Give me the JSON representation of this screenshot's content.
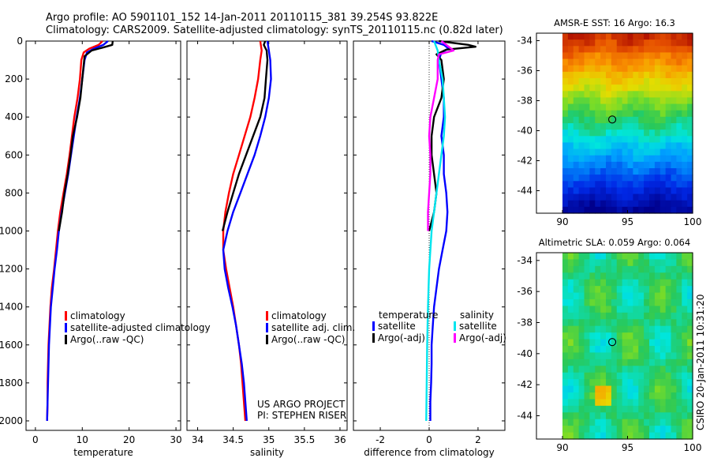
{
  "header": {
    "line1": "Argo profile: AO 5901101_152 14-Jan-2011 20110115_381 39.254S 93.822E",
    "line2": "Climatology: CARS2009. Satellite-adjusted climatology: synTS_20110115.nc (0.82d later)"
  },
  "credits": {
    "project": "US ARGO PROJECT",
    "pi": "PI: STEPHEN RISER",
    "stamp": "CSIRO 20-Jan-2011 10:31:20"
  },
  "colors": {
    "climatology": "#ff0000",
    "satellite": "#0000ff",
    "argo": "#000000",
    "sal_satellite": "#00e5ee",
    "sal_argo": "#ff00ff"
  },
  "chart_data": [
    {
      "type": "line",
      "id": "temperature",
      "xlabel": "temperature",
      "xlim": [
        -2,
        31
      ],
      "ylim": [
        2050,
        0
      ],
      "xticks": [
        "0",
        "10",
        "20",
        "30"
      ],
      "yticks": [
        "0",
        "200",
        "400",
        "600",
        "800",
        "1000",
        "1200",
        "1400",
        "1600",
        "1800",
        "2000"
      ],
      "legend": [
        "climatology",
        "satellite-adjusted climatology",
        "Argo(..raw -QC)"
      ],
      "series": [
        {
          "name": "climatology",
          "color": "#ff0000",
          "points": [
            [
              14.3,
              0
            ],
            [
              13.5,
              20
            ],
            [
              11.5,
              40
            ],
            [
              10.3,
              60
            ],
            [
              9.8,
              100
            ],
            [
              9.5,
              200
            ],
            [
              9.0,
              300
            ],
            [
              8.3,
              400
            ],
            [
              7.8,
              500
            ],
            [
              7.3,
              600
            ],
            [
              6.7,
              700
            ],
            [
              6.0,
              800
            ],
            [
              5.3,
              900
            ],
            [
              4.8,
              1000
            ],
            [
              4.4,
              1100
            ],
            [
              4.0,
              1200
            ],
            [
              3.5,
              1300
            ],
            [
              3.2,
              1400
            ],
            [
              3.0,
              1500
            ],
            [
              2.8,
              1600
            ],
            [
              2.7,
              1700
            ],
            [
              2.6,
              1800
            ],
            [
              2.6,
              1900
            ],
            [
              2.5,
              2000
            ]
          ]
        },
        {
          "name": "satellite-adjusted climatology",
          "color": "#0000ff",
          "points": [
            [
              15.5,
              0
            ],
            [
              14.5,
              20
            ],
            [
              12.5,
              40
            ],
            [
              11.0,
              60
            ],
            [
              10.5,
              100
            ],
            [
              10.0,
              200
            ],
            [
              9.5,
              300
            ],
            [
              8.8,
              400
            ],
            [
              8.2,
              500
            ],
            [
              7.6,
              600
            ],
            [
              7.0,
              700
            ],
            [
              6.3,
              800
            ],
            [
              5.6,
              900
            ],
            [
              5.0,
              1000
            ],
            [
              4.6,
              1100
            ],
            [
              4.1,
              1200
            ],
            [
              3.7,
              1300
            ],
            [
              3.3,
              1400
            ],
            [
              3.1,
              1500
            ],
            [
              2.9,
              1600
            ],
            [
              2.8,
              1700
            ],
            [
              2.7,
              1800
            ],
            [
              2.6,
              1900
            ],
            [
              2.5,
              2000
            ]
          ]
        },
        {
          "name": "Argo(..raw -QC)",
          "color": "#000000",
          "points": [
            [
              16.5,
              0
            ],
            [
              16.4,
              20
            ],
            [
              15.0,
              30
            ],
            [
              12.0,
              50
            ],
            [
              10.5,
              80
            ],
            [
              10.0,
              200
            ],
            [
              9.6,
              300
            ],
            [
              8.9,
              400
            ],
            [
              8.0,
              500
            ],
            [
              7.5,
              600
            ],
            [
              6.9,
              700
            ],
            [
              6.2,
              800
            ],
            [
              5.7,
              900
            ],
            [
              5.0,
              1000
            ]
          ]
        }
      ]
    },
    {
      "type": "line",
      "id": "salinity",
      "xlabel": "salinity",
      "xlim": [
        33.85,
        36.1
      ],
      "ylim": [
        2050,
        0
      ],
      "xticks": [
        "34",
        "34.5",
        "35",
        "35.5",
        "36"
      ],
      "legend": [
        "climatology",
        "satellite adj. clim.",
        "Argo(..raw -QC)"
      ],
      "series": [
        {
          "name": "climatology",
          "color": "#ff0000",
          "points": [
            [
              34.88,
              0
            ],
            [
              34.9,
              50
            ],
            [
              34.88,
              100
            ],
            [
              34.85,
              200
            ],
            [
              34.8,
              300
            ],
            [
              34.74,
              400
            ],
            [
              34.66,
              500
            ],
            [
              34.58,
              600
            ],
            [
              34.5,
              700
            ],
            [
              34.44,
              800
            ],
            [
              34.39,
              900
            ],
            [
              34.36,
              1000
            ],
            [
              34.36,
              1100
            ],
            [
              34.4,
              1200
            ],
            [
              34.45,
              1300
            ],
            [
              34.5,
              1400
            ],
            [
              34.54,
              1500
            ],
            [
              34.58,
              1600
            ],
            [
              34.61,
              1700
            ],
            [
              34.63,
              1800
            ],
            [
              34.65,
              1900
            ],
            [
              34.67,
              2000
            ]
          ]
        },
        {
          "name": "satellite adj. clim.",
          "color": "#0000ff",
          "points": [
            [
              34.98,
              0
            ],
            [
              35.0,
              50
            ],
            [
              35.02,
              100
            ],
            [
              35.03,
              200
            ],
            [
              35.0,
              300
            ],
            [
              34.95,
              400
            ],
            [
              34.88,
              500
            ],
            [
              34.8,
              600
            ],
            [
              34.7,
              700
            ],
            [
              34.6,
              800
            ],
            [
              34.5,
              900
            ],
            [
              34.42,
              1000
            ],
            [
              34.36,
              1100
            ],
            [
              34.38,
              1200
            ],
            [
              34.43,
              1300
            ],
            [
              34.49,
              1400
            ],
            [
              34.54,
              1500
            ],
            [
              34.58,
              1600
            ],
            [
              34.62,
              1700
            ],
            [
              34.65,
              1800
            ],
            [
              34.67,
              1900
            ],
            [
              34.69,
              2000
            ]
          ]
        },
        {
          "name": "Argo(..raw -QC)",
          "color": "#000000",
          "points": [
            [
              34.95,
              0
            ],
            [
              34.93,
              20
            ],
            [
              34.97,
              50
            ],
            [
              34.98,
              100
            ],
            [
              34.96,
              200
            ],
            [
              34.94,
              300
            ],
            [
              34.88,
              400
            ],
            [
              34.78,
              500
            ],
            [
              34.68,
              600
            ],
            [
              34.58,
              700
            ],
            [
              34.5,
              800
            ],
            [
              34.42,
              900
            ],
            [
              34.35,
              1000
            ]
          ]
        }
      ]
    },
    {
      "type": "line",
      "id": "difference",
      "xlabel": "difference from climatology",
      "xlim": [
        -3.1,
        3.1
      ],
      "ylim": [
        2050,
        0
      ],
      "xticks": [
        "-2",
        "0",
        "2"
      ],
      "legend_headers": [
        "temperature",
        "salinity"
      ],
      "legend": [
        "satellite",
        "Argo(-adj)",
        "satellite",
        "Argo(-adj)"
      ],
      "series": [
        {
          "name": "temperature satellite",
          "color": "#0000ff",
          "points": [
            [
              0.1,
              0
            ],
            [
              0.6,
              20
            ],
            [
              0.8,
              40
            ],
            [
              0.5,
              60
            ],
            [
              0.4,
              100
            ],
            [
              0.5,
              200
            ],
            [
              0.6,
              300
            ],
            [
              0.6,
              400
            ],
            [
              0.5,
              500
            ],
            [
              0.6,
              600
            ],
            [
              0.6,
              700
            ],
            [
              0.7,
              800
            ],
            [
              0.75,
              900
            ],
            [
              0.7,
              1000
            ],
            [
              0.55,
              1100
            ],
            [
              0.4,
              1200
            ],
            [
              0.3,
              1300
            ],
            [
              0.2,
              1400
            ],
            [
              0.15,
              1500
            ],
            [
              0.1,
              1600
            ],
            [
              0.1,
              1700
            ],
            [
              0.08,
              1800
            ],
            [
              0.05,
              1900
            ],
            [
              0.05,
              2000
            ]
          ]
        },
        {
          "name": "temperature Argo(-adj)",
          "color": "#000000",
          "points": [
            [
              0.4,
              0
            ],
            [
              1.6,
              20
            ],
            [
              1.9,
              30
            ],
            [
              0.7,
              45
            ],
            [
              0.3,
              70
            ],
            [
              0.5,
              100
            ],
            [
              0.6,
              200
            ],
            [
              0.5,
              300
            ],
            [
              0.2,
              400
            ],
            [
              0.1,
              500
            ],
            [
              0.1,
              600
            ],
            [
              0.2,
              700
            ],
            [
              0.3,
              800
            ],
            [
              0.2,
              900
            ],
            [
              0.0,
              1000
            ]
          ]
        },
        {
          "name": "salinity satellite",
          "color": "#00e5ee",
          "points": [
            [
              0.2,
              0
            ],
            [
              0.35,
              50
            ],
            [
              0.4,
              100
            ],
            [
              0.55,
              200
            ],
            [
              0.6,
              300
            ],
            [
              0.65,
              400
            ],
            [
              0.6,
              500
            ],
            [
              0.5,
              600
            ],
            [
              0.4,
              700
            ],
            [
              0.3,
              800
            ],
            [
              0.2,
              900
            ],
            [
              0.1,
              1000
            ],
            [
              0.0,
              1200
            ],
            [
              -0.05,
              1400
            ],
            [
              -0.08,
              1600
            ],
            [
              -0.1,
              1800
            ],
            [
              -0.12,
              2000
            ]
          ]
        },
        {
          "name": "salinity Argo(-adj)",
          "color": "#ff00ff",
          "points": [
            [
              0.5,
              0
            ],
            [
              0.8,
              30
            ],
            [
              1.0,
              50
            ],
            [
              0.4,
              70
            ],
            [
              0.35,
              100
            ],
            [
              0.35,
              200
            ],
            [
              0.2,
              300
            ],
            [
              0.05,
              400
            ],
            [
              0.0,
              500
            ],
            [
              0.05,
              600
            ],
            [
              0.05,
              700
            ],
            [
              0.0,
              800
            ],
            [
              -0.05,
              900
            ],
            [
              -0.05,
              1000
            ]
          ]
        }
      ]
    },
    {
      "type": "heatmap",
      "id": "sst-map",
      "title": "AMSR-E SST: 16 Argo: 16.3",
      "xlim": [
        88,
        100
      ],
      "ylim": [
        -45.5,
        -33.5
      ],
      "xticks": [
        "90",
        "95",
        "100"
      ],
      "yticks": [
        "-34",
        "-36",
        "-38",
        "-40",
        "-42",
        "-44"
      ],
      "marker": [
        93.822,
        -39.254
      ]
    },
    {
      "type": "heatmap",
      "id": "sla-map",
      "title": "Altimetric SLA: 0.059 Argo: 0.064",
      "xlim": [
        88,
        100
      ],
      "ylim": [
        -45.5,
        -33.5
      ],
      "xticks": [
        "90",
        "95",
        "100"
      ],
      "yticks": [
        "-34",
        "-36",
        "-38",
        "-40",
        "-42",
        "-44"
      ],
      "marker": [
        93.822,
        -39.254
      ]
    }
  ]
}
